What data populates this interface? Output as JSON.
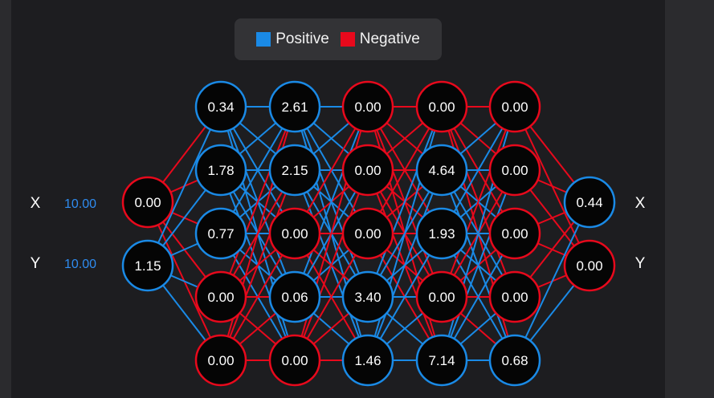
{
  "colors": {
    "positive": "#1a8ae6",
    "negative": "#e8091c",
    "node_fill": "#050505",
    "input_value": "#2f8cf0"
  },
  "legend": {
    "positive_label": "Positive",
    "negative_label": "Negative"
  },
  "inputs": [
    {
      "label": "X",
      "value": "10.00"
    },
    {
      "label": "Y",
      "value": "10.00"
    }
  ],
  "outputs": [
    {
      "label": "X"
    },
    {
      "label": "Y"
    }
  ],
  "network": {
    "layers": [
      [
        {
          "value": "0.00",
          "sign": "negative"
        },
        {
          "value": "1.15",
          "sign": "positive"
        }
      ],
      [
        {
          "value": "0.34",
          "sign": "positive"
        },
        {
          "value": "1.78",
          "sign": "positive"
        },
        {
          "value": "0.77",
          "sign": "positive"
        },
        {
          "value": "0.00",
          "sign": "negative"
        },
        {
          "value": "0.00",
          "sign": "negative"
        }
      ],
      [
        {
          "value": "2.61",
          "sign": "positive"
        },
        {
          "value": "2.15",
          "sign": "positive"
        },
        {
          "value": "0.00",
          "sign": "negative"
        },
        {
          "value": "0.06",
          "sign": "positive"
        },
        {
          "value": "0.00",
          "sign": "negative"
        }
      ],
      [
        {
          "value": "0.00",
          "sign": "negative"
        },
        {
          "value": "0.00",
          "sign": "negative"
        },
        {
          "value": "0.00",
          "sign": "negative"
        },
        {
          "value": "3.40",
          "sign": "positive"
        },
        {
          "value": "1.46",
          "sign": "positive"
        }
      ],
      [
        {
          "value": "0.00",
          "sign": "negative"
        },
        {
          "value": "4.64",
          "sign": "positive"
        },
        {
          "value": "1.93",
          "sign": "positive"
        },
        {
          "value": "0.00",
          "sign": "negative"
        },
        {
          "value": "7.14",
          "sign": "positive"
        }
      ],
      [
        {
          "value": "0.00",
          "sign": "negative"
        },
        {
          "value": "0.00",
          "sign": "negative"
        },
        {
          "value": "0.00",
          "sign": "negative"
        },
        {
          "value": "0.00",
          "sign": "negative"
        },
        {
          "value": "0.68",
          "sign": "positive"
        }
      ],
      [
        {
          "value": "0.44",
          "sign": "positive"
        },
        {
          "value": "0.00",
          "sign": "negative"
        }
      ]
    ]
  }
}
